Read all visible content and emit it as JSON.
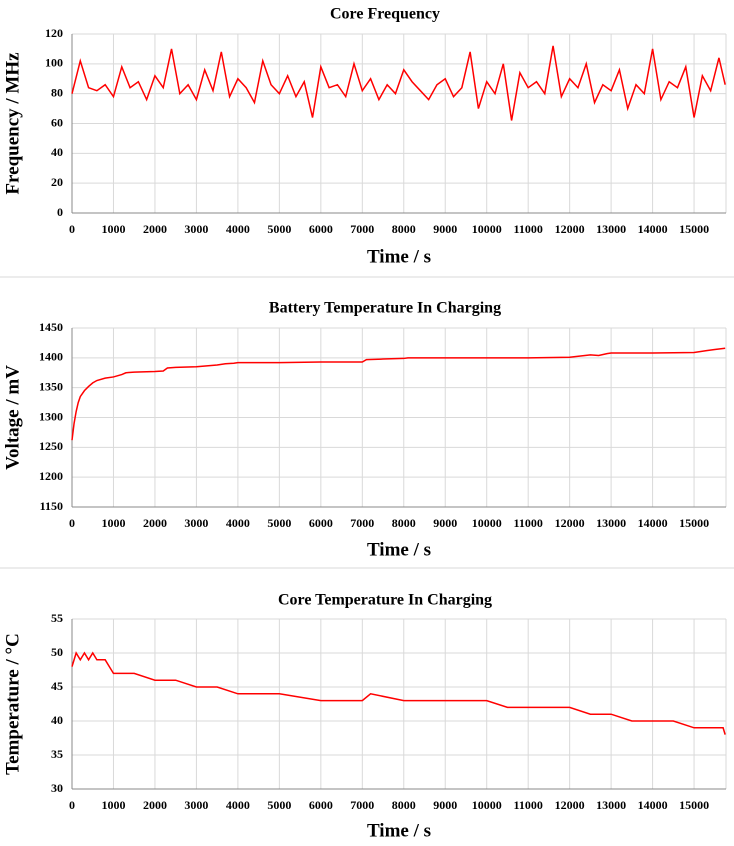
{
  "chart_data": [
    {
      "type": "line",
      "title": "Core Frequency",
      "x_label": "Time / s",
      "y_label": "Frequency / MHz",
      "grid": true,
      "xlim": [
        0,
        15770
      ],
      "xticks": [
        0,
        1000,
        2000,
        3000,
        4000,
        5000,
        6000,
        7000,
        8000,
        9000,
        10000,
        11000,
        12000,
        13000,
        14000,
        15000
      ],
      "ylim": [
        0,
        120
      ],
      "yticks": [
        0,
        20,
        40,
        60,
        80,
        100,
        120
      ],
      "x": [
        0,
        200,
        400,
        600,
        800,
        1000,
        1200,
        1400,
        1600,
        1800,
        2000,
        2200,
        2400,
        2600,
        2800,
        3000,
        3200,
        3400,
        3600,
        3800,
        4000,
        4200,
        4400,
        4600,
        4800,
        5000,
        5200,
        5400,
        5600,
        5800,
        6000,
        6200,
        6400,
        6600,
        6800,
        7000,
        7200,
        7400,
        7600,
        7800,
        8000,
        8200,
        8400,
        8600,
        8800,
        9000,
        9200,
        9400,
        9600,
        9800,
        10000,
        10200,
        10400,
        10600,
        10800,
        11000,
        11200,
        11400,
        11600,
        11800,
        12000,
        12200,
        12400,
        12600,
        12800,
        13000,
        13200,
        13400,
        13600,
        13800,
        14000,
        14200,
        14400,
        14600,
        14800,
        15000,
        15200,
        15400,
        15600,
        15750
      ],
      "series": [
        {
          "name": "Core Frequency",
          "color": "#ff0000",
          "values": [
            80,
            102,
            84,
            82,
            86,
            78,
            98,
            84,
            88,
            76,
            92,
            84,
            110,
            80,
            86,
            76,
            96,
            82,
            108,
            78,
            90,
            84,
            74,
            102,
            86,
            80,
            92,
            78,
            88,
            64,
            98,
            84,
            86,
            78,
            100,
            82,
            90,
            76,
            86,
            80,
            96,
            88,
            82,
            76,
            86,
            90,
            78,
            84,
            108,
            70,
            88,
            80,
            100,
            62,
            94,
            84,
            88,
            80,
            112,
            78,
            90,
            84,
            100,
            74,
            86,
            82,
            96,
            70,
            86,
            80,
            110,
            76,
            88,
            84,
            98,
            64,
            92,
            82,
            104,
            86
          ]
        }
      ]
    },
    {
      "type": "line",
      "title": "Battery Temperature In Charging",
      "x_label": "Time / s",
      "y_label": "Voltage / mV",
      "grid": true,
      "xlim": [
        0,
        15770
      ],
      "xticks": [
        0,
        1000,
        2000,
        3000,
        4000,
        5000,
        6000,
        7000,
        8000,
        9000,
        10000,
        11000,
        12000,
        13000,
        14000,
        15000
      ],
      "ylim": [
        1150,
        1450
      ],
      "yticks": [
        1150,
        1200,
        1250,
        1300,
        1350,
        1400,
        1450
      ],
      "x": [
        0,
        50,
        100,
        150,
        200,
        300,
        400,
        500,
        600,
        800,
        1000,
        1200,
        1300,
        1500,
        2000,
        2200,
        2300,
        2500,
        3000,
        3500,
        3700,
        3900,
        4000,
        5000,
        6000,
        7000,
        7100,
        7500,
        8000,
        8100,
        9000,
        10000,
        11000,
        12000,
        12500,
        12700,
        12900,
        13000,
        14000,
        15000,
        15300,
        15500,
        15750
      ],
      "series": [
        {
          "name": "Voltage",
          "color": "#ff0000",
          "values": [
            1262,
            1290,
            1310,
            1325,
            1335,
            1345,
            1352,
            1358,
            1362,
            1366,
            1368,
            1372,
            1375,
            1376,
            1377,
            1378,
            1383,
            1384,
            1385,
            1388,
            1390,
            1391,
            1392,
            1392,
            1393,
            1393,
            1397,
            1398,
            1399,
            1400,
            1400,
            1400,
            1400,
            1401,
            1405,
            1404,
            1407,
            1408,
            1408,
            1409,
            1412,
            1414,
            1416
          ]
        }
      ]
    },
    {
      "type": "line",
      "title": "Core Temperature In Charging",
      "x_label": "Time / s",
      "y_label": "Temperature / °C",
      "grid": true,
      "xlim": [
        0,
        15770
      ],
      "xticks": [
        0,
        1000,
        2000,
        3000,
        4000,
        5000,
        6000,
        7000,
        8000,
        9000,
        10000,
        11000,
        12000,
        13000,
        14000,
        15000
      ],
      "ylim": [
        30,
        55
      ],
      "yticks": [
        30,
        35,
        40,
        45,
        50,
        55
      ],
      "x": [
        0,
        100,
        200,
        300,
        400,
        500,
        600,
        700,
        800,
        900,
        1000,
        1200,
        1500,
        2000,
        2500,
        3000,
        3500,
        4000,
        5000,
        6000,
        7000,
        7200,
        8000,
        9000,
        10000,
        10500,
        11000,
        12000,
        12500,
        13000,
        13500,
        14000,
        14500,
        15000,
        15500,
        15700,
        15750
      ],
      "series": [
        {
          "name": "Temperature",
          "color": "#ff0000",
          "values": [
            48,
            50,
            49,
            50,
            49,
            50,
            49,
            49,
            49,
            48,
            47,
            47,
            47,
            46,
            46,
            45,
            45,
            44,
            44,
            43,
            43,
            44,
            43,
            43,
            43,
            42,
            42,
            42,
            41,
            41,
            40,
            40,
            40,
            39,
            39,
            39,
            38
          ]
        }
      ]
    }
  ]
}
